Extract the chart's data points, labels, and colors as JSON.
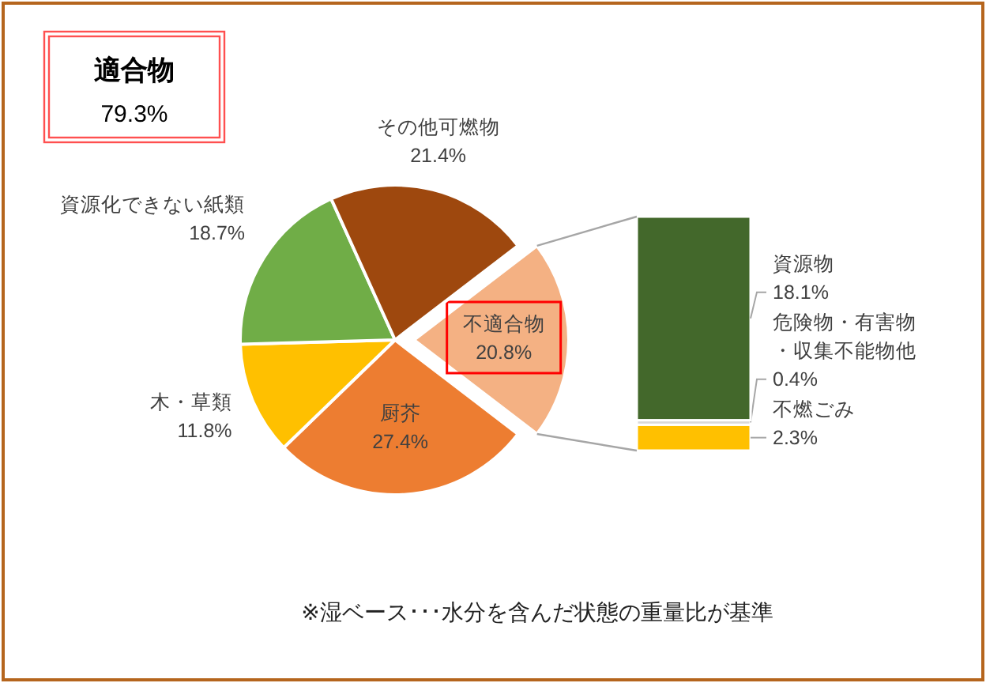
{
  "chart_data": [
    {
      "type": "pie",
      "categories": [
        "不適合物",
        "厨芥",
        "木・草類",
        "資源化できない紙類",
        "その他可燃物"
      ],
      "values": [
        20.8,
        27.4,
        11.8,
        18.7,
        21.4
      ],
      "colors": [
        "#f4b183",
        "#ed7d31",
        "#ffc000",
        "#70ad47",
        "#9e480e"
      ],
      "value_labels": [
        "20.8%",
        "27.4%",
        "11.8%",
        "18.7%",
        "21.4%"
      ],
      "annotations": [
        "適合物 79.3%",
        "※湿ベース･･･水分を含んだ状態の重量比が基準"
      ]
    },
    {
      "type": "bar",
      "stacked": true,
      "categories": [
        null
      ],
      "series": [
        {
          "name": "不燃ごみ",
          "color": "#ffc000",
          "values": [
            2.3
          ],
          "value_labels": [
            "2.3%"
          ]
        },
        {
          "name": "危険物・有害物・収集不能物他",
          "color": "#d9d9d9",
          "values": [
            0.4
          ],
          "value_labels": [
            "0.4%"
          ]
        },
        {
          "name": "資源物",
          "color": "#43682b",
          "values": [
            18.1
          ],
          "value_labels": [
            "18.1%"
          ]
        }
      ]
    }
  ]
}
